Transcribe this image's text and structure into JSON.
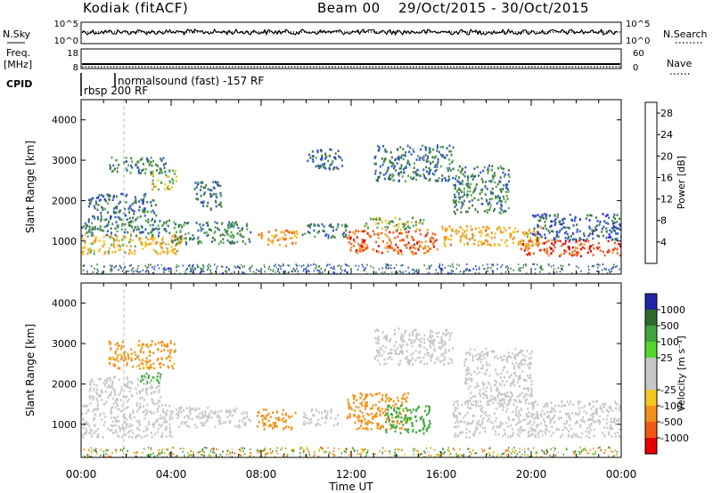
{
  "header": {
    "station": "Kodiak (fitACF)",
    "beam": "Beam 00",
    "date_range": "29/Oct/2015 - 30/Oct/2015"
  },
  "strips": {
    "nsky_label": "N.Sky",
    "nsky_ticks": [
      "10^5",
      "10^0"
    ],
    "nsearch_label": "N.Search",
    "nsearch_ticks": [
      "10^5",
      "10^0"
    ],
    "freq_label_1": "Freq.",
    "freq_label_2": "[MHz]",
    "freq_ticks": [
      "18",
      "8"
    ],
    "nave_label": "Nave",
    "nave_ticks": [
      "60",
      "0"
    ],
    "cpid_label": "CPID",
    "cpid_modes": [
      {
        "name": "rbsp 200 RF",
        "start_hour": 0.0
      },
      {
        "name": "normalsound (fast) -157 RF",
        "start_hour": 1.9
      }
    ]
  },
  "colors": {
    "power": [
      "#1a1aff",
      "#2c58c8",
      "#3f7a3f",
      "#57a857",
      "#f6c21d",
      "#f7931e",
      "#f45a18",
      "#e60000"
    ],
    "velocity": [
      "#2323a8",
      "#2e6b2e",
      "#3ea63e",
      "#55d62a",
      "#c8c8c8",
      "#c8c8c8",
      "#f5c81e",
      "#f2921a",
      "#f05a14",
      "#e60000"
    ]
  },
  "chart_data": [
    {
      "type": "heatmap",
      "title": "Power",
      "xlabel": "Time UT",
      "ylabel": "Slant Range [km]",
      "x_ticks": [
        "00:00",
        "04:00",
        "08:00",
        "12:00",
        "16:00",
        "20:00",
        "00:00"
      ],
      "xlim_hours": [
        0,
        24
      ],
      "y_ticks": [
        1000,
        2000,
        3000,
        4000
      ],
      "ylim_km": [
        180,
        4500
      ],
      "colorbar_label": "Power [dB]",
      "colorbar_ticks": [
        4,
        8,
        12,
        16,
        20,
        24,
        28
      ],
      "colorbar_range": [
        0,
        30
      ],
      "dashed_line_hour": 1.9,
      "regions": [
        {
          "t0": 0.0,
          "t1": 4.5,
          "r0": 700,
          "r1": 1200,
          "v": 19
        },
        {
          "t0": 0.0,
          "t1": 4.0,
          "r0": 1150,
          "r1": 1550,
          "v": 10
        },
        {
          "t0": 0.3,
          "t1": 3.3,
          "r0": 1550,
          "r1": 2200,
          "v": 8
        },
        {
          "t0": 3.0,
          "t1": 4.2,
          "r0": 2300,
          "r1": 2800,
          "v": 17
        },
        {
          "t0": 1.2,
          "t1": 3.8,
          "r0": 2700,
          "r1": 3100,
          "v": 10
        },
        {
          "t0": 4.0,
          "t1": 7.5,
          "r0": 950,
          "r1": 1500,
          "v": 11
        },
        {
          "t0": 5.0,
          "t1": 6.2,
          "r0": 1800,
          "r1": 2500,
          "v": 8
        },
        {
          "t0": 7.8,
          "t1": 9.6,
          "r0": 900,
          "r1": 1300,
          "v": 22
        },
        {
          "t0": 9.8,
          "t1": 11.8,
          "r0": 1100,
          "r1": 1450,
          "v": 9
        },
        {
          "t0": 10.0,
          "t1": 11.6,
          "r0": 2800,
          "r1": 3300,
          "v": 8
        },
        {
          "t0": 11.8,
          "t1": 15.8,
          "r0": 700,
          "r1": 1300,
          "v": 25
        },
        {
          "t0": 12.5,
          "t1": 15.2,
          "r0": 1300,
          "r1": 1600,
          "v": 14
        },
        {
          "t0": 13.0,
          "t1": 16.5,
          "r0": 2500,
          "r1": 3400,
          "v": 9
        },
        {
          "t0": 16.0,
          "t1": 20.5,
          "r0": 900,
          "r1": 1400,
          "v": 20
        },
        {
          "t0": 16.5,
          "t1": 19.0,
          "r0": 1700,
          "r1": 2900,
          "v": 10
        },
        {
          "t0": 19.5,
          "t1": 24.0,
          "r0": 650,
          "r1": 1050,
          "v": 27
        },
        {
          "t0": 20.0,
          "t1": 24.0,
          "r0": 1050,
          "r1": 1700,
          "v": 7
        }
      ]
    },
    {
      "type": "heatmap",
      "title": "Velocity",
      "xlabel": "Time UT",
      "ylabel": "Slant Range [km]",
      "x_ticks": [
        "00:00",
        "04:00",
        "08:00",
        "12:00",
        "16:00",
        "20:00",
        "00:00"
      ],
      "xlim_hours": [
        0,
        24
      ],
      "y_ticks": [
        1000,
        2000,
        3000,
        4000
      ],
      "ylim_km": [
        180,
        4500
      ],
      "colorbar_label": "Velocity [m s⁻¹]",
      "colorbar_ticks": [
        1000,
        500,
        100,
        25,
        -25,
        -100,
        -500,
        -1000
      ],
      "dashed_line_hour": 1.9,
      "regions": [
        {
          "t0": 0.0,
          "t1": 4.0,
          "r0": 700,
          "r1": 1500,
          "v": 0
        },
        {
          "t0": 0.3,
          "t1": 3.5,
          "r0": 1500,
          "r1": 2200,
          "v": 0
        },
        {
          "t0": 1.2,
          "t1": 4.2,
          "r0": 2400,
          "r1": 3100,
          "v": -150
        },
        {
          "t0": 2.5,
          "t1": 3.5,
          "r0": 2050,
          "r1": 2300,
          "v": 150
        },
        {
          "t0": 4.0,
          "t1": 7.5,
          "r0": 950,
          "r1": 1450,
          "v": 0
        },
        {
          "t0": 7.8,
          "t1": 9.5,
          "r0": 900,
          "r1": 1400,
          "v": -200
        },
        {
          "t0": 9.8,
          "t1": 11.5,
          "r0": 1000,
          "r1": 1400,
          "v": 0
        },
        {
          "t0": 11.8,
          "t1": 14.5,
          "r0": 900,
          "r1": 1800,
          "v": -300
        },
        {
          "t0": 13.5,
          "t1": 15.5,
          "r0": 800,
          "r1": 1500,
          "v": 150
        },
        {
          "t0": 13.0,
          "t1": 16.5,
          "r0": 2500,
          "r1": 3400,
          "v": 0
        },
        {
          "t0": 16.5,
          "t1": 24.0,
          "r0": 700,
          "r1": 1600,
          "v": 0
        },
        {
          "t0": 17.0,
          "t1": 20.0,
          "r0": 1600,
          "r1": 2900,
          "v": 0
        }
      ]
    }
  ]
}
